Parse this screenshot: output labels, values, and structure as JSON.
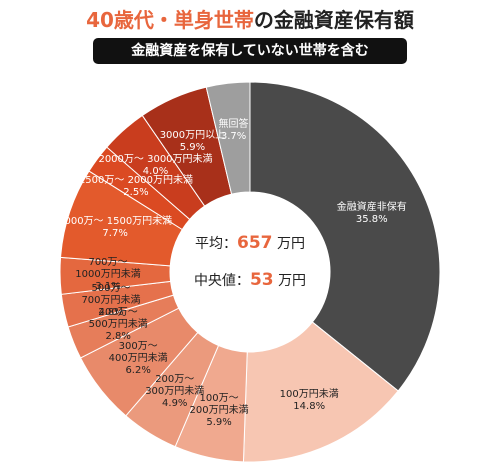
{
  "chart_data": {
    "type": "donut",
    "title_highlight": "40歳代・単身世帯",
    "title": "の金融資産保有額",
    "subtitle": "金融資産を保有していない世帯を含む",
    "center": {
      "mean_label": "平均：",
      "mean_value": 657,
      "median_label": "中央値：",
      "median_value": 53,
      "unit": "万円"
    },
    "categories": [
      "金融資産非保有",
      "100万円未満",
      "100万～\n200万円未満",
      "200万～\n300万円未満",
      "300万～\n400万円未満",
      "400万～\n500万円未満",
      "500万～\n700万円未満",
      "700万～\n1000万円未満",
      "1000万～ 1500万円未満",
      "1500万～ 2000万円未満",
      "2000万～ 3000万円未満",
      "3000万円以上",
      "無回答"
    ],
    "values": [
      35.8,
      14.8,
      5.9,
      4.9,
      6.2,
      2.8,
      2.8,
      3.1,
      7.7,
      2.5,
      4.0,
      5.9,
      3.7
    ],
    "value_labels": [
      "35.8%",
      "14.8%",
      "5.9%",
      "4.9%",
      "6.2%",
      "2.8%",
      "2.8%",
      "3.1%",
      "7.7%",
      "2.5%",
      "4.0%",
      "5.9%",
      "3.7%"
    ],
    "colors": [
      "#4a4a4a",
      "#f7c6b2",
      "#f0a98f",
      "#eb9a7d",
      "#e88a6a",
      "#e67d5a",
      "#e5714c",
      "#e4683f",
      "#e35a2c",
      "#db4a22",
      "#c93d1e",
      "#a8301a",
      "#9e9e9e"
    ]
  }
}
